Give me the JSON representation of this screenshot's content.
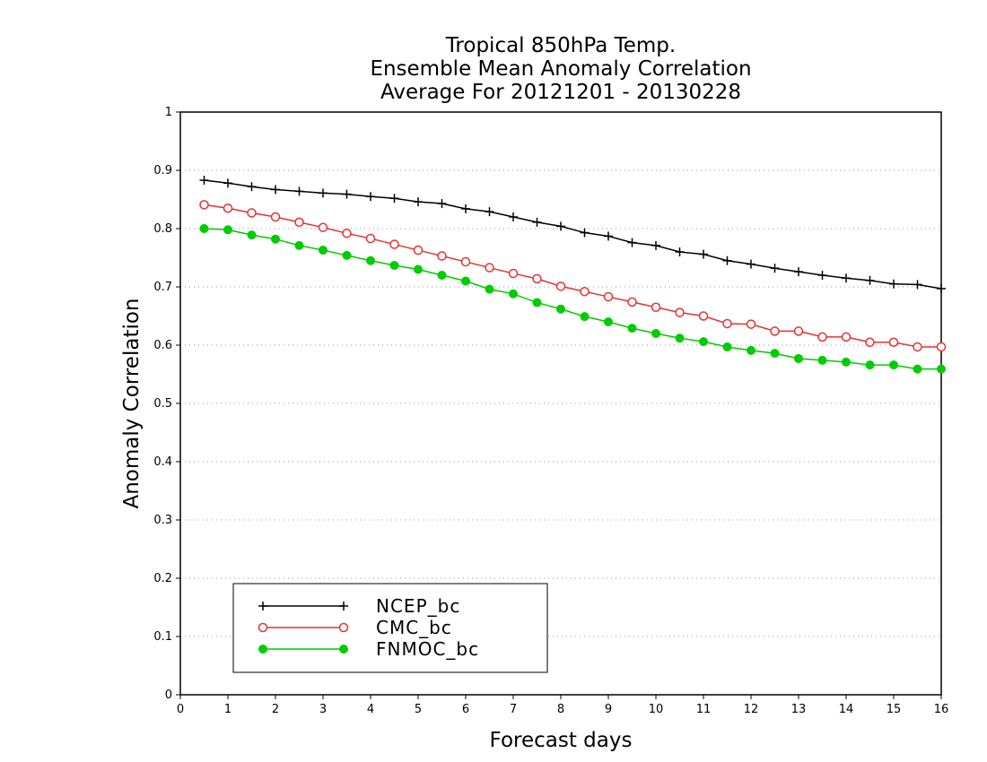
{
  "chart_data": {
    "type": "line",
    "title_lines": [
      "Tropical 850hPa Temp.",
      "Ensemble Mean Anomaly Correlation",
      "Average For 20121201 - 20130228"
    ],
    "xlabel": "Forecast days",
    "ylabel": "Anomaly Correlation",
    "xlim": [
      0,
      16
    ],
    "ylim": [
      0,
      1
    ],
    "x_ticks": [
      "0",
      "1",
      "2",
      "3",
      "4",
      "5",
      "6",
      "7",
      "8",
      "9",
      "10",
      "11",
      "12",
      "13",
      "14",
      "15",
      "16"
    ],
    "y_ticks": [
      "0",
      "0.1",
      "0.2",
      "0.3",
      "0.4",
      "0.5",
      "0.6",
      "0.7",
      "0.8",
      "0.9",
      "1"
    ],
    "grid": "horizontal dotted",
    "legend_position": "bottom-left",
    "x": [
      0.5,
      1,
      1.5,
      2,
      2.5,
      3,
      3.5,
      4,
      4.5,
      5,
      5.5,
      6,
      6.5,
      7,
      7.5,
      8,
      8.5,
      9,
      9.5,
      10,
      10.5,
      11,
      11.5,
      12,
      12.5,
      13,
      13.5,
      14,
      14.5,
      15,
      15.5,
      16
    ],
    "series": [
      {
        "name": "NCEP_bc",
        "color": "#000000",
        "marker": "plus",
        "values": [
          0.883,
          0.878,
          0.872,
          0.867,
          0.864,
          0.861,
          0.859,
          0.855,
          0.852,
          0.846,
          0.843,
          0.834,
          0.829,
          0.82,
          0.811,
          0.804,
          0.793,
          0.787,
          0.776,
          0.771,
          0.76,
          0.756,
          0.745,
          0.739,
          0.732,
          0.726,
          0.72,
          0.715,
          0.711,
          0.705,
          0.704,
          0.697
        ]
      },
      {
        "name": "CMC_bc",
        "color": "#e83030",
        "marker": "open-circle",
        "values": [
          0.841,
          0.835,
          0.827,
          0.82,
          0.811,
          0.802,
          0.792,
          0.783,
          0.773,
          0.763,
          0.753,
          0.743,
          0.733,
          0.723,
          0.714,
          0.701,
          0.692,
          0.683,
          0.674,
          0.665,
          0.656,
          0.65,
          0.637,
          0.636,
          0.624,
          0.624,
          0.614,
          0.614,
          0.605,
          0.605,
          0.597,
          0.597
        ]
      },
      {
        "name": "FNMOC_bc",
        "color": "#00cc00",
        "marker": "filled-circle",
        "values": [
          0.8,
          0.798,
          0.789,
          0.782,
          0.771,
          0.763,
          0.754,
          0.745,
          0.737,
          0.73,
          0.72,
          0.71,
          0.696,
          0.688,
          0.673,
          0.662,
          0.649,
          0.64,
          0.629,
          0.62,
          0.612,
          0.606,
          0.597,
          0.591,
          0.586,
          0.577,
          0.574,
          0.571,
          0.566,
          0.566,
          0.559,
          0.559
        ]
      }
    ]
  }
}
